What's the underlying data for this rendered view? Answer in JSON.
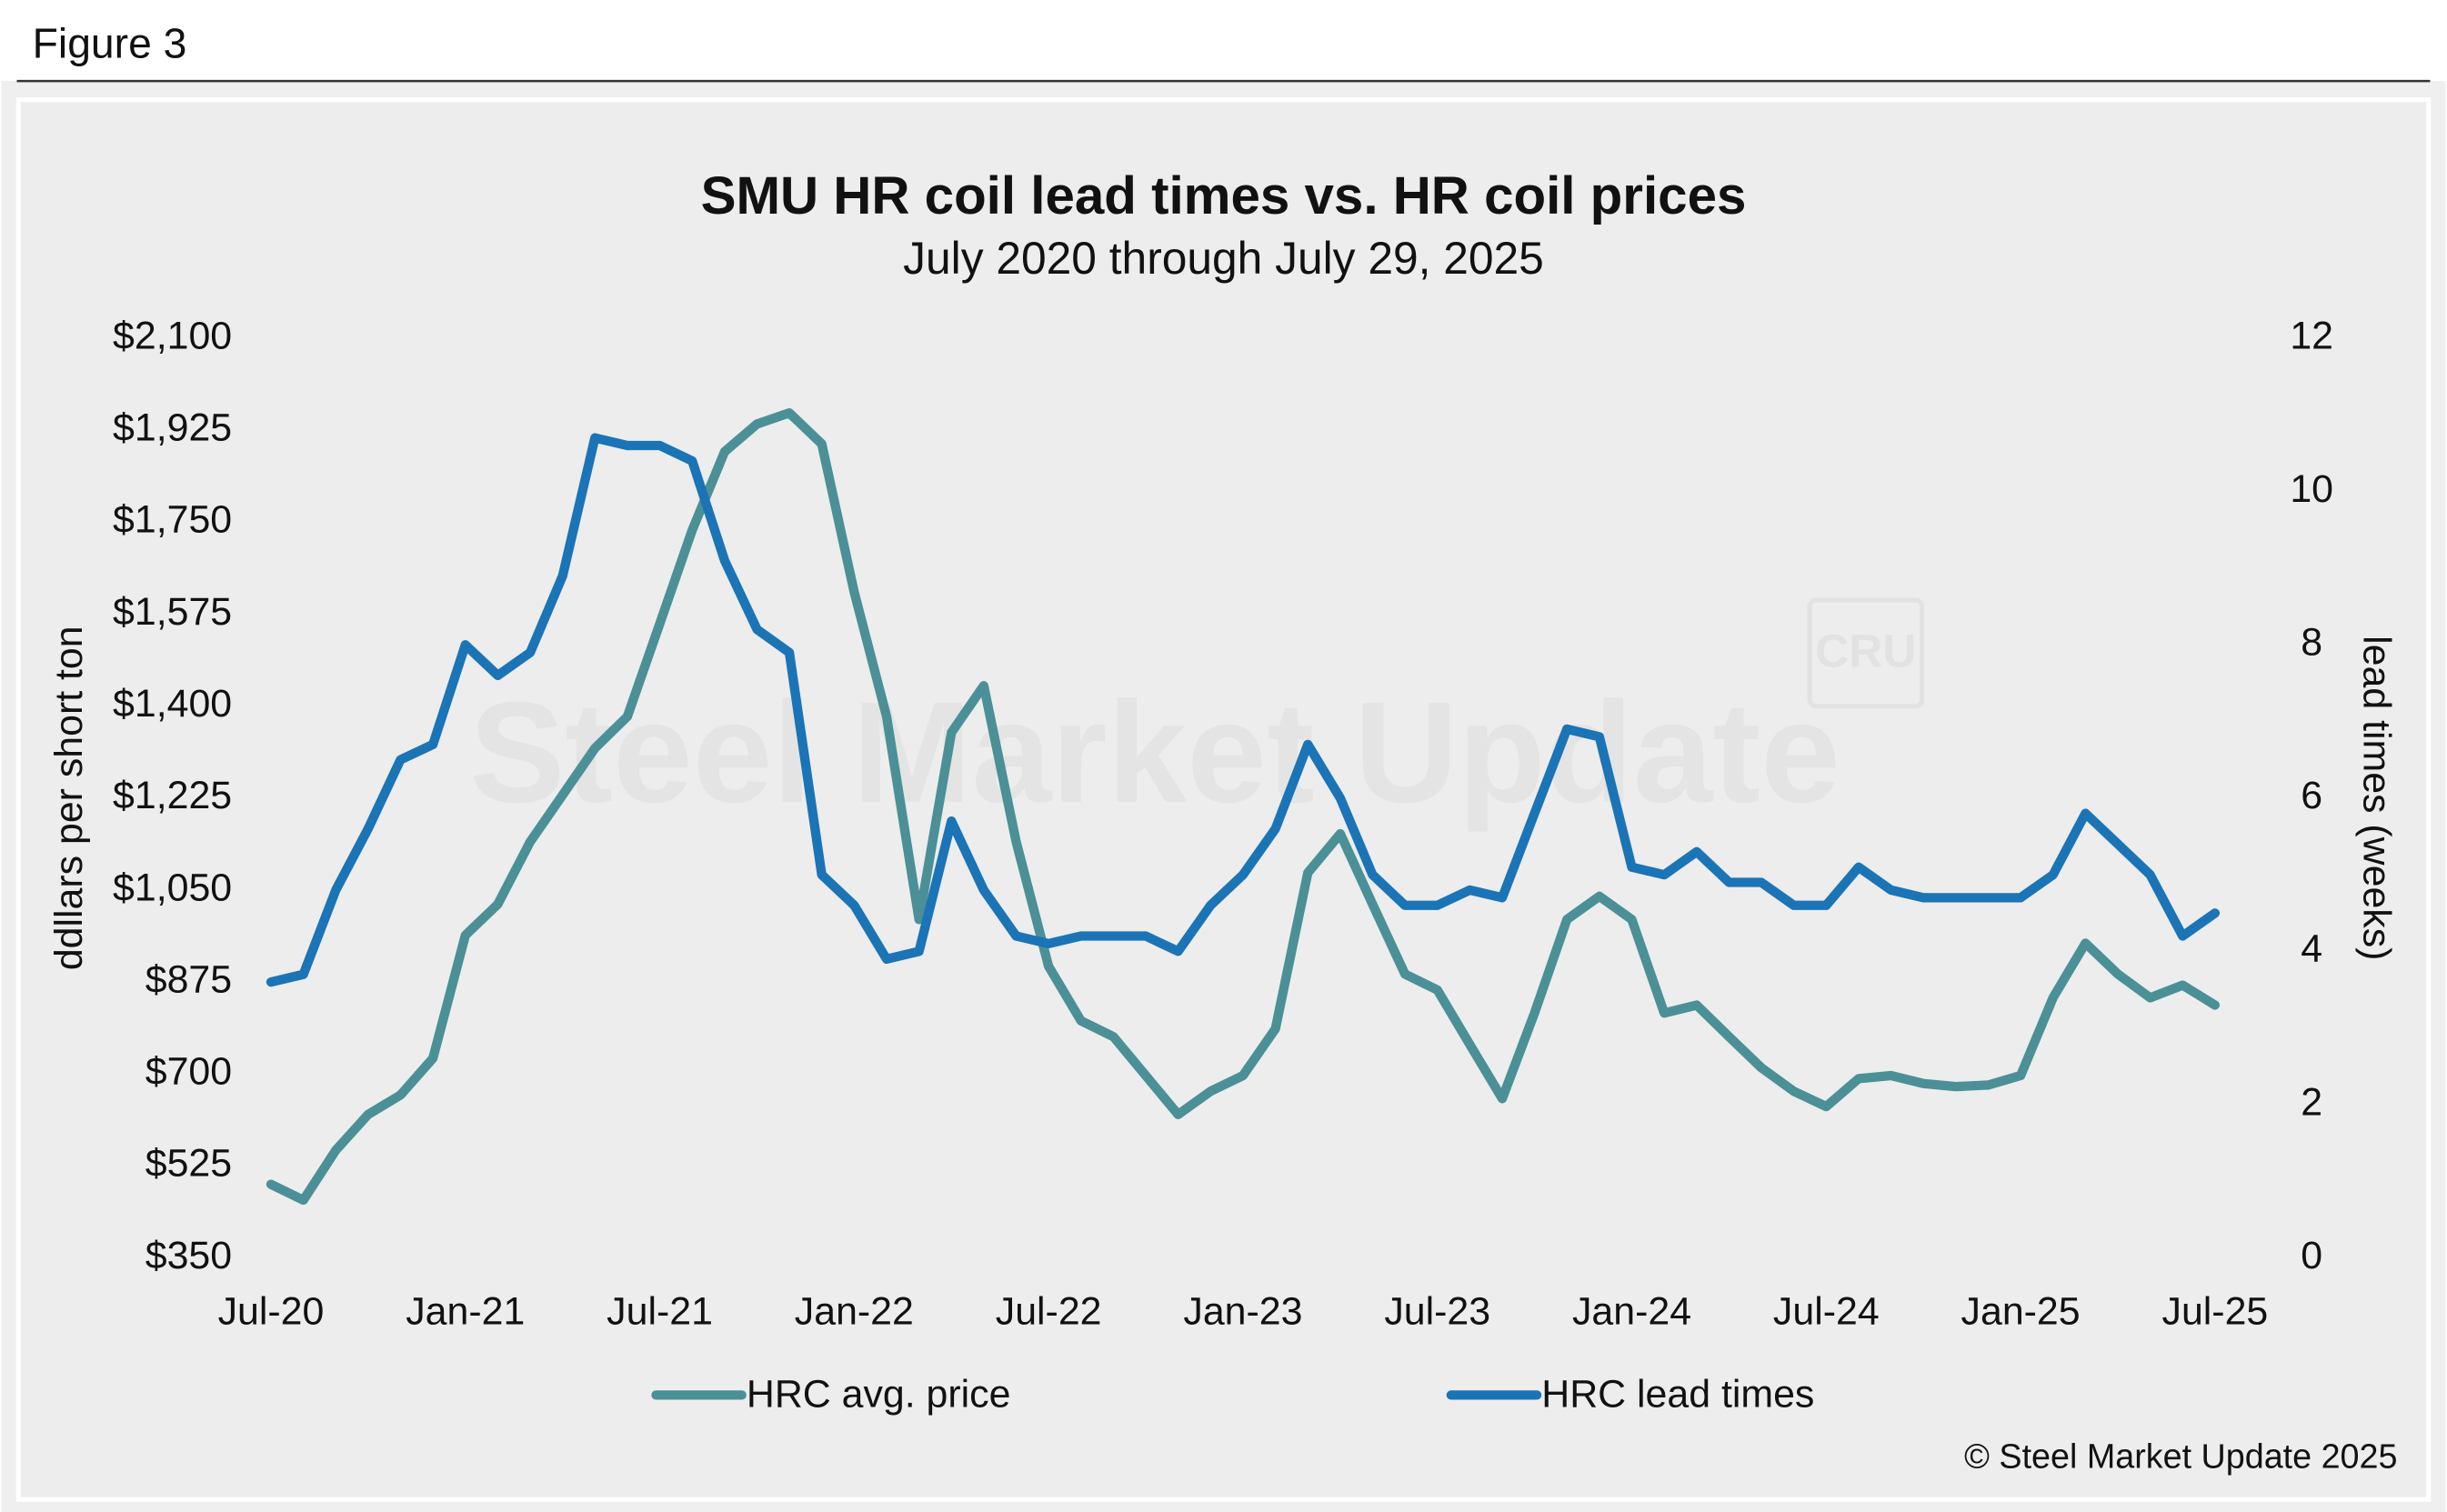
{
  "figure_label": "Figure 3",
  "chart_data": {
    "type": "line",
    "title": "SMU HR coil lead times vs. HR coil prices",
    "subtitle": "July 2020 through July 29, 2025",
    "y_label": "ddllars per short ton",
    "y2_label": "lead times (weeks)",
    "credit": "© Steel Market Update 2025",
    "watermark": [
      "Steel Market Update",
      "CRU"
    ],
    "categories": [
      "Jul-20",
      null,
      null,
      null,
      null,
      null,
      "Jan-21",
      null,
      null,
      null,
      null,
      null,
      "Jul-21",
      null,
      null,
      null,
      null,
      null,
      "Jan-22",
      null,
      null,
      null,
      null,
      null,
      "Jul-22",
      null,
      null,
      null,
      null,
      null,
      "Jan-23",
      null,
      null,
      null,
      null,
      null,
      "Jul-23",
      null,
      null,
      null,
      null,
      null,
      "Jan-24",
      null,
      null,
      null,
      null,
      null,
      "Jul-24",
      null,
      null,
      null,
      null,
      null,
      "Jan-25",
      null,
      null,
      null,
      null,
      null,
      "Jul-25"
    ],
    "ylim": [
      350,
      2100
    ],
    "yticks": [
      {
        "value": 350,
        "label": "$350"
      },
      {
        "value": 525,
        "label": "$525"
      },
      {
        "value": 700,
        "label": "$700"
      },
      {
        "value": 875,
        "label": "$875"
      },
      {
        "value": 1050,
        "label": "$1,050"
      },
      {
        "value": 1225,
        "label": "$1,225"
      },
      {
        "value": 1400,
        "label": "$1,400"
      },
      {
        "value": 1575,
        "label": "$1,575"
      },
      {
        "value": 1750,
        "label": "$1,750"
      },
      {
        "value": 1925,
        "label": "$1,925"
      },
      {
        "value": 2100,
        "label": "$2,100"
      }
    ],
    "y2lim": [
      0,
      12
    ],
    "y2ticks": [
      0,
      2,
      4,
      6,
      8,
      10,
      12
    ],
    "legend": "bottom",
    "series": [
      {
        "name": "HRC avg. price",
        "color": "#4b9097",
        "values": [
          490,
          460,
          555,
          623,
          660,
          730,
          964,
          1023,
          1142,
          1231,
          1320,
          1380,
          1557,
          1735,
          1884,
          1937,
          1958,
          1899,
          1617,
          1380,
          994,
          1350,
          1439,
          1142,
          905,
          801,
          771,
          697,
          623,
          667,
          697,
          786,
          1083,
          1157,
          1023,
          890,
          860,
          756,
          653,
          816,
          994,
          1038,
          994,
          816,
          831,
          771,
          712,
          667,
          638,
          691,
          697,
          682,
          676,
          679,
          697,
          845,
          949,
          890,
          845,
          869,
          831
        ]
      },
      {
        "name": "HRC lead times",
        "color": "#1b74b6",
        "axis": "y2",
        "values": [
          3.6,
          3.7,
          4.8,
          5.6,
          6.5,
          6.7,
          8.0,
          7.6,
          7.9,
          8.9,
          10.7,
          10.6,
          10.6,
          10.4,
          9.1,
          8.2,
          7.9,
          5.0,
          4.6,
          3.9,
          4.0,
          5.7,
          4.8,
          4.2,
          4.1,
          4.2,
          4.2,
          4.2,
          4.0,
          4.6,
          5.0,
          5.6,
          6.7,
          6.0,
          5.0,
          4.6,
          4.6,
          4.8,
          4.7,
          5.8,
          6.9,
          6.8,
          5.1,
          5.0,
          5.3,
          4.9,
          4.9,
          4.6,
          4.6,
          5.1,
          4.8,
          4.7,
          4.7,
          4.7,
          4.7,
          5.0,
          5.8,
          5.4,
          5.0,
          4.2,
          4.5
        ]
      }
    ]
  }
}
